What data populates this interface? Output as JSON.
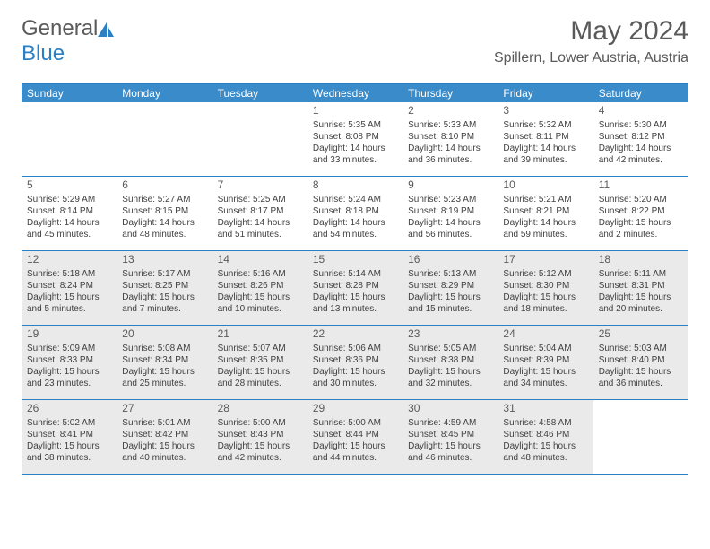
{
  "logo": {
    "text1": "General",
    "text2": "Blue"
  },
  "title": "May 2024",
  "location": "Spillern, Lower Austria, Austria",
  "weekdays": [
    "Sunday",
    "Monday",
    "Tuesday",
    "Wednesday",
    "Thursday",
    "Friday",
    "Saturday"
  ],
  "header_bg": "#3a8bc9",
  "border_color": "#2b7fc3",
  "shaded_bg": "#eaeaea",
  "weeks": [
    [
      {
        "n": "",
        "sr": "",
        "ss": "",
        "dl1": "",
        "dl2": "",
        "shaded": false,
        "empty": true
      },
      {
        "n": "",
        "sr": "",
        "ss": "",
        "dl1": "",
        "dl2": "",
        "shaded": false,
        "empty": true
      },
      {
        "n": "",
        "sr": "",
        "ss": "",
        "dl1": "",
        "dl2": "",
        "shaded": false,
        "empty": true
      },
      {
        "n": "1",
        "sr": "Sunrise: 5:35 AM",
        "ss": "Sunset: 8:08 PM",
        "dl1": "Daylight: 14 hours",
        "dl2": "and 33 minutes.",
        "shaded": false
      },
      {
        "n": "2",
        "sr": "Sunrise: 5:33 AM",
        "ss": "Sunset: 8:10 PM",
        "dl1": "Daylight: 14 hours",
        "dl2": "and 36 minutes.",
        "shaded": false
      },
      {
        "n": "3",
        "sr": "Sunrise: 5:32 AM",
        "ss": "Sunset: 8:11 PM",
        "dl1": "Daylight: 14 hours",
        "dl2": "and 39 minutes.",
        "shaded": false
      },
      {
        "n": "4",
        "sr": "Sunrise: 5:30 AM",
        "ss": "Sunset: 8:12 PM",
        "dl1": "Daylight: 14 hours",
        "dl2": "and 42 minutes.",
        "shaded": false
      }
    ],
    [
      {
        "n": "5",
        "sr": "Sunrise: 5:29 AM",
        "ss": "Sunset: 8:14 PM",
        "dl1": "Daylight: 14 hours",
        "dl2": "and 45 minutes.",
        "shaded": false
      },
      {
        "n": "6",
        "sr": "Sunrise: 5:27 AM",
        "ss": "Sunset: 8:15 PM",
        "dl1": "Daylight: 14 hours",
        "dl2": "and 48 minutes.",
        "shaded": false
      },
      {
        "n": "7",
        "sr": "Sunrise: 5:25 AM",
        "ss": "Sunset: 8:17 PM",
        "dl1": "Daylight: 14 hours",
        "dl2": "and 51 minutes.",
        "shaded": false
      },
      {
        "n": "8",
        "sr": "Sunrise: 5:24 AM",
        "ss": "Sunset: 8:18 PM",
        "dl1": "Daylight: 14 hours",
        "dl2": "and 54 minutes.",
        "shaded": false
      },
      {
        "n": "9",
        "sr": "Sunrise: 5:23 AM",
        "ss": "Sunset: 8:19 PM",
        "dl1": "Daylight: 14 hours",
        "dl2": "and 56 minutes.",
        "shaded": false
      },
      {
        "n": "10",
        "sr": "Sunrise: 5:21 AM",
        "ss": "Sunset: 8:21 PM",
        "dl1": "Daylight: 14 hours",
        "dl2": "and 59 minutes.",
        "shaded": false
      },
      {
        "n": "11",
        "sr": "Sunrise: 5:20 AM",
        "ss": "Sunset: 8:22 PM",
        "dl1": "Daylight: 15 hours",
        "dl2": "and 2 minutes.",
        "shaded": false
      }
    ],
    [
      {
        "n": "12",
        "sr": "Sunrise: 5:18 AM",
        "ss": "Sunset: 8:24 PM",
        "dl1": "Daylight: 15 hours",
        "dl2": "and 5 minutes.",
        "shaded": true
      },
      {
        "n": "13",
        "sr": "Sunrise: 5:17 AM",
        "ss": "Sunset: 8:25 PM",
        "dl1": "Daylight: 15 hours",
        "dl2": "and 7 minutes.",
        "shaded": true
      },
      {
        "n": "14",
        "sr": "Sunrise: 5:16 AM",
        "ss": "Sunset: 8:26 PM",
        "dl1": "Daylight: 15 hours",
        "dl2": "and 10 minutes.",
        "shaded": true
      },
      {
        "n": "15",
        "sr": "Sunrise: 5:14 AM",
        "ss": "Sunset: 8:28 PM",
        "dl1": "Daylight: 15 hours",
        "dl2": "and 13 minutes.",
        "shaded": true
      },
      {
        "n": "16",
        "sr": "Sunrise: 5:13 AM",
        "ss": "Sunset: 8:29 PM",
        "dl1": "Daylight: 15 hours",
        "dl2": "and 15 minutes.",
        "shaded": true
      },
      {
        "n": "17",
        "sr": "Sunrise: 5:12 AM",
        "ss": "Sunset: 8:30 PM",
        "dl1": "Daylight: 15 hours",
        "dl2": "and 18 minutes.",
        "shaded": true
      },
      {
        "n": "18",
        "sr": "Sunrise: 5:11 AM",
        "ss": "Sunset: 8:31 PM",
        "dl1": "Daylight: 15 hours",
        "dl2": "and 20 minutes.",
        "shaded": true
      }
    ],
    [
      {
        "n": "19",
        "sr": "Sunrise: 5:09 AM",
        "ss": "Sunset: 8:33 PM",
        "dl1": "Daylight: 15 hours",
        "dl2": "and 23 minutes.",
        "shaded": true
      },
      {
        "n": "20",
        "sr": "Sunrise: 5:08 AM",
        "ss": "Sunset: 8:34 PM",
        "dl1": "Daylight: 15 hours",
        "dl2": "and 25 minutes.",
        "shaded": true
      },
      {
        "n": "21",
        "sr": "Sunrise: 5:07 AM",
        "ss": "Sunset: 8:35 PM",
        "dl1": "Daylight: 15 hours",
        "dl2": "and 28 minutes.",
        "shaded": true
      },
      {
        "n": "22",
        "sr": "Sunrise: 5:06 AM",
        "ss": "Sunset: 8:36 PM",
        "dl1": "Daylight: 15 hours",
        "dl2": "and 30 minutes.",
        "shaded": true
      },
      {
        "n": "23",
        "sr": "Sunrise: 5:05 AM",
        "ss": "Sunset: 8:38 PM",
        "dl1": "Daylight: 15 hours",
        "dl2": "and 32 minutes.",
        "shaded": true
      },
      {
        "n": "24",
        "sr": "Sunrise: 5:04 AM",
        "ss": "Sunset: 8:39 PM",
        "dl1": "Daylight: 15 hours",
        "dl2": "and 34 minutes.",
        "shaded": true
      },
      {
        "n": "25",
        "sr": "Sunrise: 5:03 AM",
        "ss": "Sunset: 8:40 PM",
        "dl1": "Daylight: 15 hours",
        "dl2": "and 36 minutes.",
        "shaded": true
      }
    ],
    [
      {
        "n": "26",
        "sr": "Sunrise: 5:02 AM",
        "ss": "Sunset: 8:41 PM",
        "dl1": "Daylight: 15 hours",
        "dl2": "and 38 minutes.",
        "shaded": true
      },
      {
        "n": "27",
        "sr": "Sunrise: 5:01 AM",
        "ss": "Sunset: 8:42 PM",
        "dl1": "Daylight: 15 hours",
        "dl2": "and 40 minutes.",
        "shaded": true
      },
      {
        "n": "28",
        "sr": "Sunrise: 5:00 AM",
        "ss": "Sunset: 8:43 PM",
        "dl1": "Daylight: 15 hours",
        "dl2": "and 42 minutes.",
        "shaded": true
      },
      {
        "n": "29",
        "sr": "Sunrise: 5:00 AM",
        "ss": "Sunset: 8:44 PM",
        "dl1": "Daylight: 15 hours",
        "dl2": "and 44 minutes.",
        "shaded": true
      },
      {
        "n": "30",
        "sr": "Sunrise: 4:59 AM",
        "ss": "Sunset: 8:45 PM",
        "dl1": "Daylight: 15 hours",
        "dl2": "and 46 minutes.",
        "shaded": true
      },
      {
        "n": "31",
        "sr": "Sunrise: 4:58 AM",
        "ss": "Sunset: 8:46 PM",
        "dl1": "Daylight: 15 hours",
        "dl2": "and 48 minutes.",
        "shaded": true
      },
      {
        "n": "",
        "sr": "",
        "ss": "",
        "dl1": "",
        "dl2": "",
        "shaded": false,
        "empty": true
      }
    ]
  ]
}
